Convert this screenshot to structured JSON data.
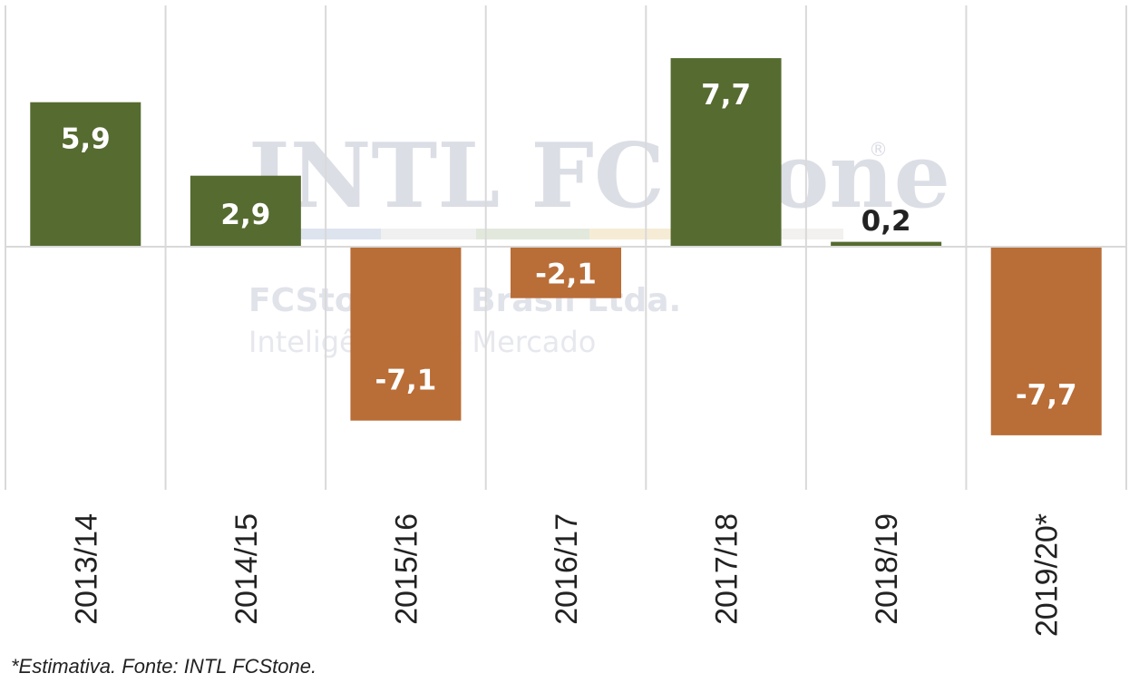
{
  "watermark": {
    "brand": "INTL FCStone",
    "registered_mark": "®",
    "company": "FCStone do Brasil Ltda.",
    "tagline": "Inteligência de Mercado"
  },
  "footnote": "*Estimativa. Fonte: INTL FCStone.",
  "colors": {
    "positive": "#566b30",
    "negative": "#b96d37",
    "gridline": "#d9d9d9",
    "label_on_bar": "#ffffff",
    "label_outside": "#222222"
  },
  "chart_data": {
    "type": "bar",
    "categories": [
      "2013/14",
      "2014/15",
      "2015/16",
      "2016/17",
      "2017/18",
      "2018/19",
      "2019/20*"
    ],
    "values": [
      5.9,
      2.9,
      -7.1,
      -2.1,
      7.7,
      0.2,
      -7.7
    ],
    "data_labels": [
      "5,9",
      "2,9",
      "-7,1",
      "-2,1",
      "7,7",
      "0,2",
      "-7,7"
    ],
    "title": "",
    "xlabel": "",
    "ylabel": "",
    "ylim": [
      -10,
      10
    ],
    "grid": "vertical",
    "legend": "none"
  }
}
